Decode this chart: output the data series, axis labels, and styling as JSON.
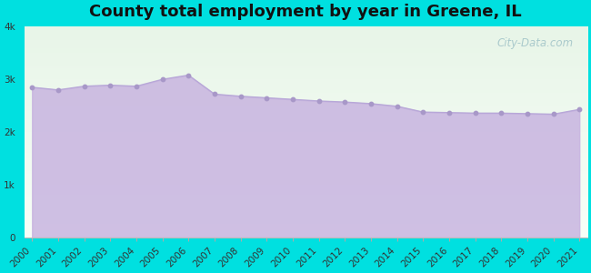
{
  "title": "County total employment by year in Greene, IL",
  "years": [
    2000,
    2001,
    2002,
    2003,
    2004,
    2005,
    2006,
    2007,
    2008,
    2009,
    2010,
    2011,
    2012,
    2013,
    2014,
    2015,
    2016,
    2017,
    2018,
    2019,
    2020,
    2021
  ],
  "values": [
    2850,
    2800,
    2870,
    2890,
    2870,
    3000,
    3080,
    2720,
    2680,
    2650,
    2620,
    2590,
    2570,
    2540,
    2490,
    2380,
    2370,
    2360,
    2360,
    2350,
    2340,
    2430
  ],
  "ylim": [
    0,
    4000
  ],
  "yticks": [
    0,
    1000,
    2000,
    3000,
    4000
  ],
  "ytick_labels": [
    "0",
    "1k",
    "2k",
    "3k",
    "4k"
  ],
  "bg_color": "#00e0e0",
  "plot_bg_top_color": "#e8f5e8",
  "plot_bg_bottom_color": "#f8fff8",
  "fill_color": "#c8b4e0",
  "fill_alpha": 0.85,
  "line_color": "#b8a8d8",
  "dot_color": "#a898c8",
  "dot_size": 10,
  "title_fontsize": 13,
  "tick_fontsize": 7.5,
  "watermark": "City-Data.com",
  "watermark_color": "#90b8c0",
  "watermark_alpha": 0.7
}
